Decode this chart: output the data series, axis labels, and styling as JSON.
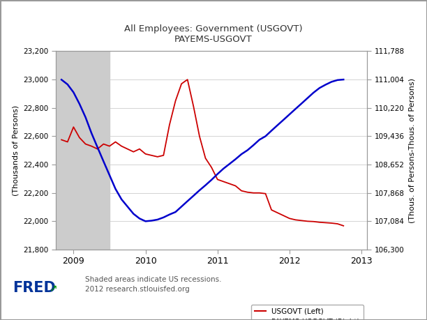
{
  "title_line1": "All Employees: Government (USGOVT)",
  "title_line2": "PAYEMS-USGOVT",
  "ylabel_left": "(Thousands of Persons)",
  "ylabel_right": "(Thous. of Persons-Thous. of Persons)",
  "ylim_left": [
    21800,
    23200
  ],
  "ylim_right": [
    106300,
    111788
  ],
  "yticks_left": [
    21800,
    22000,
    22200,
    22400,
    22600,
    22800,
    23000,
    23200
  ],
  "yticks_right": [
    106300,
    107084,
    107868,
    108652,
    109436,
    110220,
    111004,
    111788
  ],
  "ytick_labels_left": [
    "21,800",
    "22,000",
    "22,200",
    "22,400",
    "22,600",
    "22,800",
    "23,000",
    "23,200"
  ],
  "ytick_labels_right": [
    "106,300",
    "107,084",
    "107,868",
    "108,652",
    "109,436",
    "110,220",
    "111,004",
    "111,788"
  ],
  "xticks": [
    2009,
    2010,
    2011,
    2012,
    2013
  ],
  "xlim": [
    2008.75,
    2013.08
  ],
  "recession_start": 2008.75,
  "recession_end": 2009.5,
  "background_color": "#ffffff",
  "recession_color": "#cccccc",
  "red_color": "#cc0000",
  "blue_color": "#0000cc",
  "legend_label_red": "USGOVT (Left)",
  "legend_label_blue": "PAYEMS-USGOVT (Right)",
  "note_line1": "Shaded areas indicate US recessions.",
  "note_line2": "2012 research.stlouisfed.org",
  "usgovt_x": [
    2008.833,
    2008.917,
    2009.0,
    2009.083,
    2009.167,
    2009.25,
    2009.333,
    2009.417,
    2009.5,
    2009.583,
    2009.667,
    2009.75,
    2009.833,
    2009.917,
    2010.0,
    2010.083,
    2010.167,
    2010.25,
    2010.333,
    2010.417,
    2010.5,
    2010.583,
    2010.667,
    2010.75,
    2010.833,
    2010.917,
    2011.0,
    2011.083,
    2011.167,
    2011.25,
    2011.333,
    2011.417,
    2011.5,
    2011.583,
    2011.667,
    2011.75,
    2011.833,
    2011.917,
    2012.0,
    2012.083,
    2012.167,
    2012.25,
    2012.333,
    2012.417,
    2012.5,
    2012.583,
    2012.667,
    2012.75
  ],
  "usgovt_y": [
    22575,
    22560,
    22665,
    22590,
    22545,
    22530,
    22510,
    22545,
    22530,
    22560,
    22530,
    22510,
    22490,
    22510,
    22475,
    22465,
    22455,
    22465,
    22680,
    22850,
    22970,
    23000,
    22810,
    22600,
    22445,
    22380,
    22295,
    22280,
    22265,
    22250,
    22215,
    22205,
    22200,
    22200,
    22195,
    22080,
    22060,
    22040,
    22020,
    22010,
    22005,
    22000,
    21998,
    21993,
    21990,
    21987,
    21982,
    21968
  ],
  "payems_x": [
    2008.833,
    2008.917,
    2009.0,
    2009.083,
    2009.167,
    2009.25,
    2009.333,
    2009.417,
    2009.5,
    2009.583,
    2009.667,
    2009.75,
    2009.833,
    2009.917,
    2010.0,
    2010.083,
    2010.167,
    2010.25,
    2010.333,
    2010.417,
    2010.5,
    2010.583,
    2010.667,
    2010.75,
    2010.833,
    2010.917,
    2011.0,
    2011.083,
    2011.167,
    2011.25,
    2011.333,
    2011.417,
    2011.5,
    2011.583,
    2011.667,
    2011.75,
    2011.833,
    2011.917,
    2012.0,
    2012.083,
    2012.167,
    2012.25,
    2012.333,
    2012.417,
    2012.5,
    2012.583,
    2012.667,
    2012.75
  ],
  "payems_y": [
    111000,
    110870,
    110650,
    110330,
    109960,
    109520,
    109130,
    108740,
    108360,
    107980,
    107690,
    107490,
    107290,
    107160,
    107084,
    107100,
    107130,
    107190,
    107270,
    107340,
    107490,
    107640,
    107790,
    107940,
    108080,
    108230,
    108390,
    108540,
    108670,
    108800,
    108940,
    109050,
    109190,
    109340,
    109436,
    109590,
    109740,
    109890,
    110040,
    110190,
    110340,
    110490,
    110640,
    110770,
    110860,
    110940,
    110990,
    111004
  ]
}
